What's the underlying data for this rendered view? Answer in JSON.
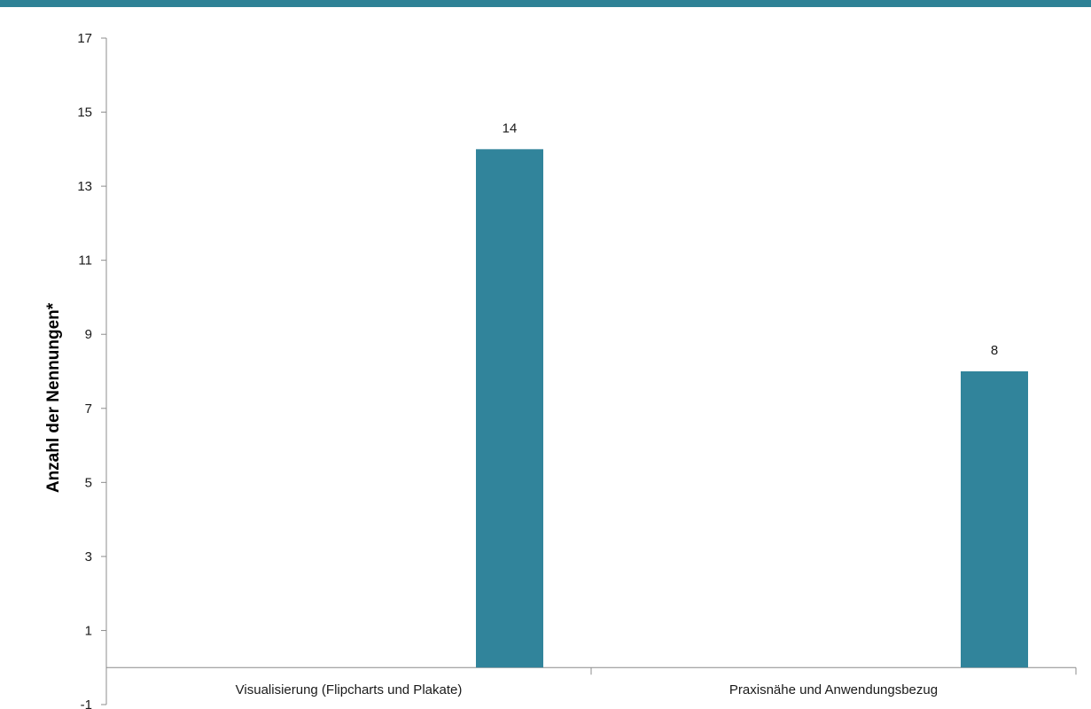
{
  "colors": {
    "top_band": "#2e8296",
    "bar": "#31849b",
    "axis": "#8c8c8c",
    "text": "#1a1a1a"
  },
  "chart_data": {
    "type": "bar",
    "title": "",
    "xlabel": "",
    "ylabel": "Anzahl der Nennungen*",
    "categories": [
      "Visualisierung (Flipcharts und Plakate)",
      "Praxisnähe und Anwendungsbezug"
    ],
    "series": [
      {
        "values": [
          14,
          8
        ]
      }
    ],
    "data_labels": [
      "14",
      "8"
    ],
    "ylim": [
      -1,
      17
    ],
    "yticks": [
      -1,
      1,
      3,
      5,
      7,
      9,
      11,
      13,
      15,
      17
    ],
    "ytick_labels": [
      "-1",
      "1",
      "3",
      "5",
      "7",
      "9",
      "11",
      "13",
      "15",
      "17"
    ],
    "x_axis_at": 0,
    "grid": false,
    "legend": "none",
    "bar_position": "right-aligned within each category"
  }
}
